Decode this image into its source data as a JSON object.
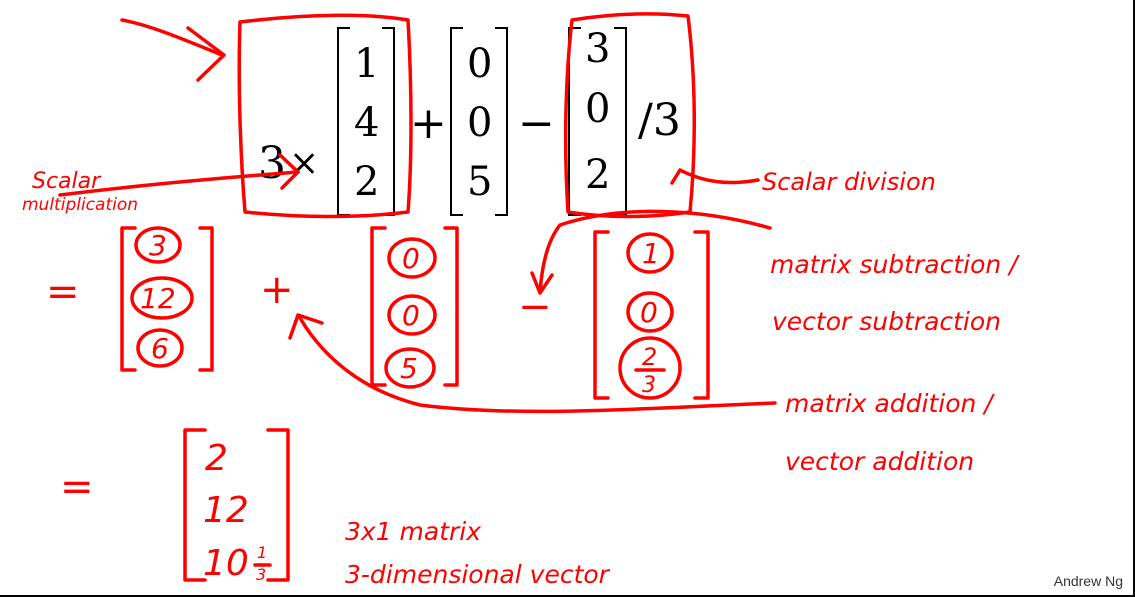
{
  "equation": {
    "scalar": "3",
    "times": "×",
    "vec_a": [
      "1",
      "4",
      "2"
    ],
    "plus": "+",
    "vec_b": [
      "0",
      "0",
      "5"
    ],
    "minus": "−",
    "vec_c": [
      "3",
      "0",
      "2"
    ],
    "div": "/3"
  },
  "annotations": {
    "scalar_mult_1": "Scalar",
    "scalar_mult_2": "multiplication",
    "scalar_div": "Scalar division",
    "mat_sub_1": "matrix subtraction /",
    "mat_sub_2": "vector subtraction",
    "mat_add_1": "matrix addition /",
    "mat_add_2": "vector addition",
    "shape_1": "3x1 matrix",
    "shape_2": "3-dimensional vector"
  },
  "step1": {
    "eq": "=",
    "vec1": [
      "3",
      "12",
      "6"
    ],
    "plus": "+",
    "vec2": [
      "0",
      "0",
      "5"
    ],
    "minus": "−",
    "vec3_top": "1",
    "vec3_mid": "0",
    "vec3_num": "2",
    "vec3_den": "3"
  },
  "result": {
    "eq": "=",
    "r1": "2",
    "r2": "12",
    "r3_whole": "10",
    "r3_num": "1",
    "r3_den": "3"
  },
  "credit": "Andrew Ng",
  "colors": {
    "ink": "#ff0000",
    "text": "#000000"
  }
}
